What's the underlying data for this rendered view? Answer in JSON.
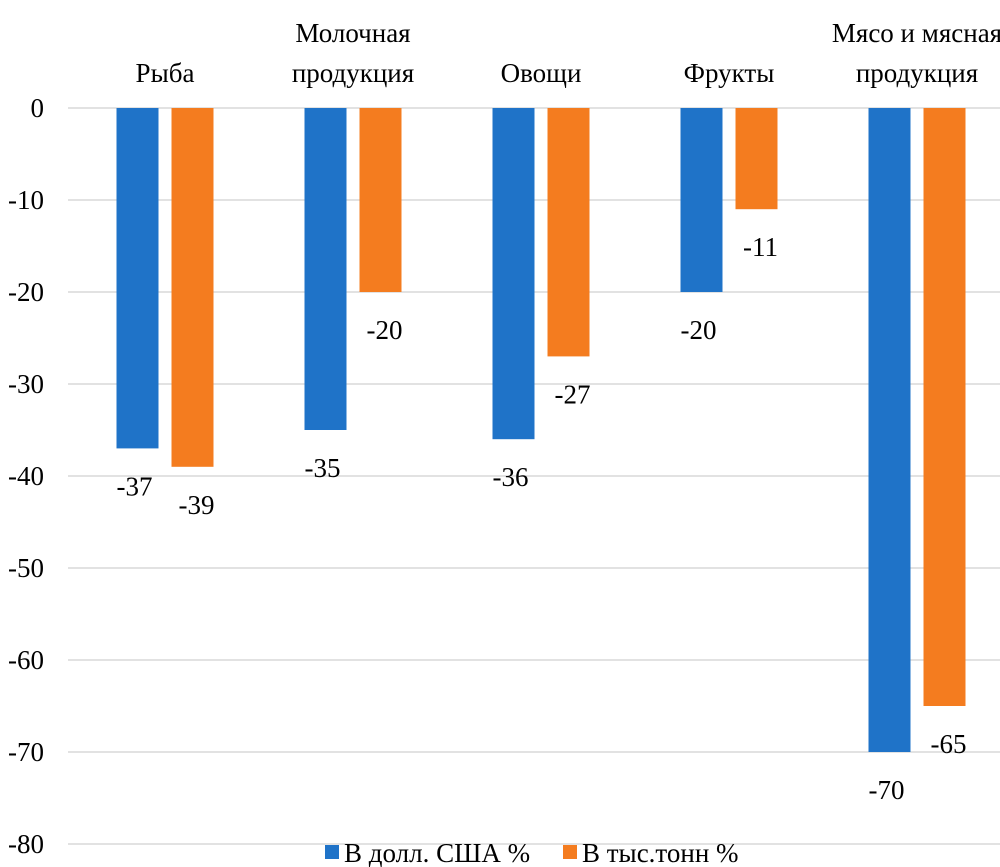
{
  "chart_data": {
    "type": "bar",
    "categories": [
      [
        "Рыба"
      ],
      [
        "Молочная",
        "продукция"
      ],
      [
        "Овощи"
      ],
      [
        "Фрукты"
      ],
      [
        "Мясо и мясная",
        "продукция"
      ]
    ],
    "series": [
      {
        "name": "В долл. США %",
        "values": [
          -37,
          -35,
          -36,
          -20,
          -70
        ],
        "color": "#1f73c8"
      },
      {
        "name": "В тыс.тонн %",
        "values": [
          -39,
          -20,
          -27,
          -11,
          -65
        ],
        "color": "#f47c1f"
      }
    ],
    "data_labels": [
      [
        "-37",
        "-35",
        "-36",
        "-20",
        "-70"
      ],
      [
        "-39",
        "-20",
        "-27",
        "-11",
        "-65"
      ]
    ],
    "ylim": [
      -80,
      0
    ],
    "yticks": [
      0,
      -10,
      -20,
      -30,
      -40,
      -50,
      -60,
      -70,
      -80
    ],
    "ytick_labels": [
      "0",
      "-10",
      "-20",
      "-30",
      "-40",
      "-50",
      "-60",
      "-70",
      "-80"
    ],
    "title": "",
    "xlabel": "",
    "ylabel": "",
    "grid": true,
    "legend_position": "bottom",
    "category_labels_position": "top"
  }
}
